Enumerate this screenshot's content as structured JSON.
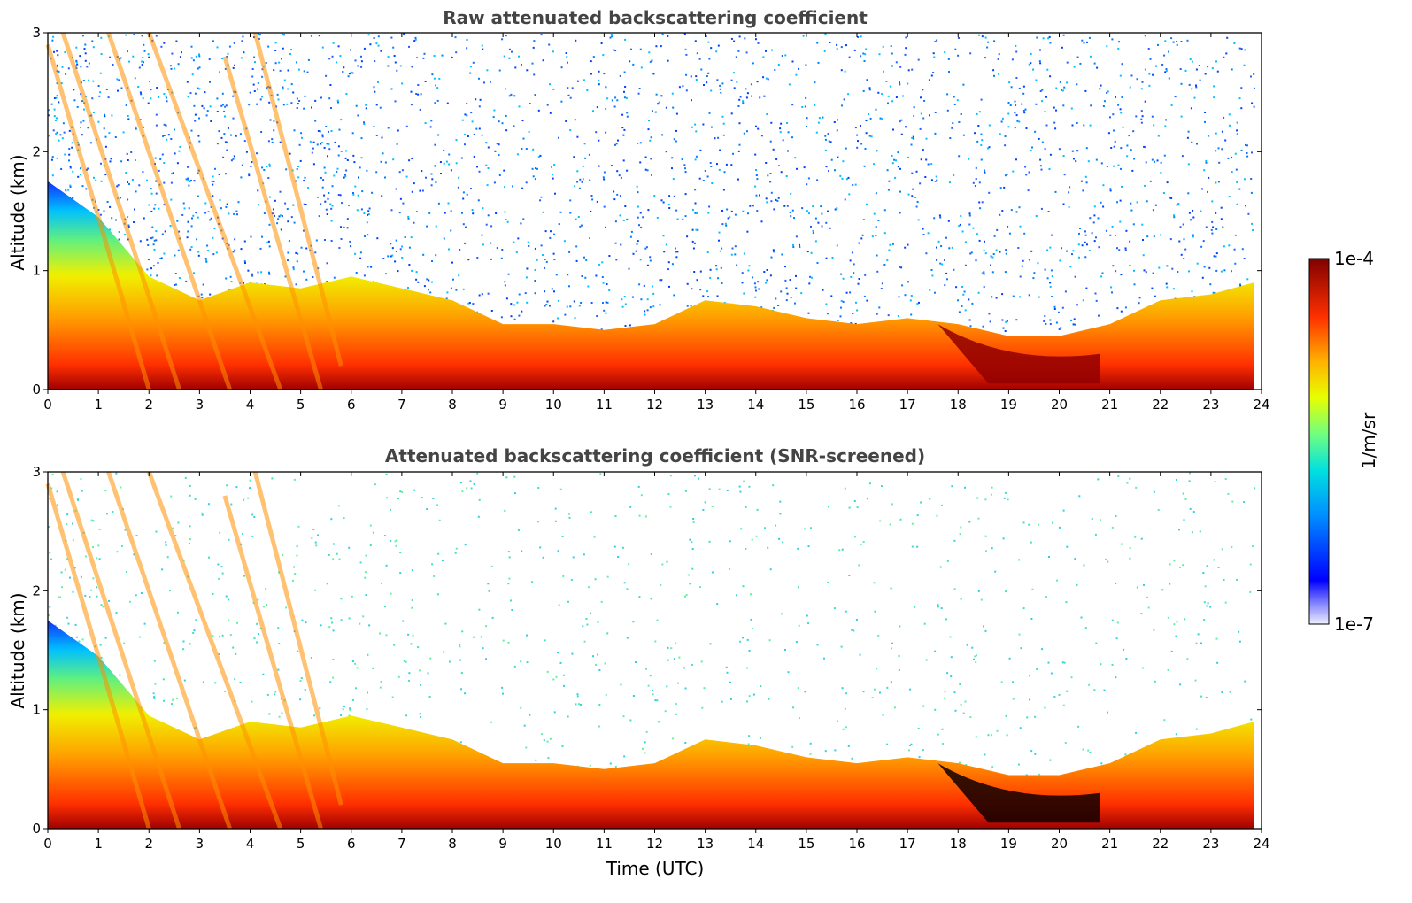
{
  "chart_data": [
    {
      "type": "heatmap",
      "title": "Raw attenuated backscattering coefficient",
      "xlabel": "",
      "ylabel": "Altitude (km)",
      "xlim": [
        0,
        24
      ],
      "ylim": [
        0,
        3
      ],
      "xticks": [
        "0",
        "1",
        "2",
        "3",
        "4",
        "5",
        "6",
        "7",
        "8",
        "9",
        "10",
        "11",
        "12",
        "13",
        "14",
        "15",
        "16",
        "17",
        "18",
        "19",
        "20",
        "21",
        "22",
        "23",
        "24"
      ],
      "yticks": [
        "0",
        "1",
        "2",
        "3"
      ],
      "layer_top_km": [
        1.75,
        1.45,
        0.95,
        0.75,
        0.9,
        0.85,
        0.95,
        0.85,
        0.75,
        0.55,
        0.55,
        0.5,
        0.55,
        0.75,
        0.7,
        0.6,
        0.55,
        0.6,
        0.55,
        0.45,
        0.45,
        0.55,
        0.75,
        0.8,
        0.9
      ],
      "notes": [
        "descending aerosol layers 0-6 UTC",
        "cloud layer 18-21 UTC"
      ]
    },
    {
      "type": "heatmap",
      "title": "Attenuated backscattering coefficient (SNR-screened)",
      "xlabel": "Time (UTC)",
      "ylabel": "Altitude (km)",
      "xlim": [
        0,
        24
      ],
      "ylim": [
        0,
        3
      ],
      "xticks": [
        "0",
        "1",
        "2",
        "3",
        "4",
        "5",
        "6",
        "7",
        "8",
        "9",
        "10",
        "11",
        "12",
        "13",
        "14",
        "15",
        "16",
        "17",
        "18",
        "19",
        "20",
        "21",
        "22",
        "23",
        "24"
      ],
      "yticks": [
        "0",
        "1",
        "2",
        "3"
      ],
      "layer_top_km": [
        1.75,
        1.45,
        0.95,
        0.75,
        0.9,
        0.85,
        0.95,
        0.85,
        0.75,
        0.55,
        0.55,
        0.5,
        0.55,
        0.75,
        0.7,
        0.6,
        0.55,
        0.6,
        0.55,
        0.45,
        0.45,
        0.55,
        0.75,
        0.8,
        0.9
      ],
      "notes": [
        "noise screened above layer",
        "strong signal 18.5-21 UTC"
      ]
    }
  ],
  "colorbar": {
    "label": "1/m/sr",
    "max_label": "1e-4",
    "min_label": "1e-7",
    "scale": "log",
    "range": [
      1e-07,
      0.0001
    ],
    "colormap": "jet",
    "colors": [
      "#dde0f8",
      "#8080ff",
      "#0000ff",
      "#0080ff",
      "#00e0e0",
      "#60ff80",
      "#e0ff00",
      "#ffd000",
      "#ff8000",
      "#ff2000",
      "#c00000",
      "#800000"
    ]
  }
}
